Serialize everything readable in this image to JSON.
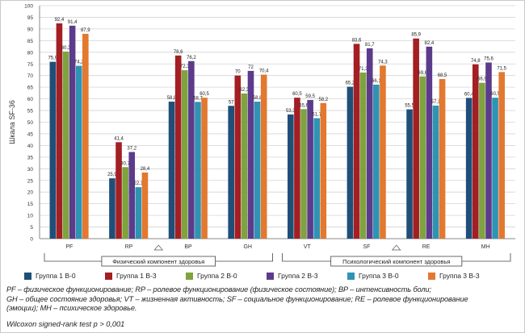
{
  "chart_data": {
    "type": "bar",
    "ylabel": "Шкала SF-36",
    "ylim": [
      0,
      100
    ],
    "ytick_step": 5,
    "grid": true,
    "categories": [
      "PF",
      "RP",
      "BP",
      "GH",
      "VT",
      "SF",
      "RE",
      "MH"
    ],
    "series": [
      {
        "name": "Группа 1 В-0",
        "color": "#1f4e79",
        "values": [
          75.9,
          25.9,
          58.8,
          57,
          53.3,
          65.2,
          55.5,
          60.4
        ],
        "labels": [
          "75,9",
          "25,9",
          "58,8",
          "57",
          "53,3",
          "65,2",
          "55,5",
          "60,4"
        ]
      },
      {
        "name": "Группа 1 В-3",
        "color": "#a31f24",
        "values": [
          92.4,
          41.4,
          78.6,
          70,
          60.5,
          83.6,
          85.9,
          74.8
        ],
        "labels": [
          "92,4",
          "41,4",
          "78,6",
          "70",
          "60,5",
          "83,6",
          "85,9",
          "74,8"
        ]
      },
      {
        "name": "Группа 2 В-0",
        "color": "#7ea33f",
        "values": [
          80.3,
          30.7,
          72.3,
          62.3,
          55.6,
          71.3,
          69.6,
          66.9
        ],
        "labels": [
          "80,3",
          "30,7",
          "72,3",
          "62,3",
          "55,6",
          "71,3",
          "69,6",
          "66,9"
        ]
      },
      {
        "name": "Группа 2 В-3",
        "color": "#5c3b8c",
        "values": [
          91.4,
          37.2,
          76.2,
          72,
          59.5,
          81.7,
          82.4,
          75.6
        ],
        "labels": [
          "91,4",
          "37,2",
          "76,2",
          "72",
          "59,5",
          "81,7",
          "82,4",
          "75,6"
        ]
      },
      {
        "name": "Группа 3 В-0",
        "color": "#2f93b3",
        "values": [
          74.2,
          22.1,
          58.7,
          58.8,
          51.7,
          66.1,
          57.1,
          60.5
        ],
        "labels": [
          "74,2",
          "22,1",
          "58,7",
          "58,8",
          "51,7",
          "66,1",
          "57,1",
          "60,5"
        ]
      },
      {
        "name": "Группа 3 В-3",
        "color": "#e3782f",
        "values": [
          87.9,
          28.4,
          60.5,
          70.4,
          58.2,
          74.3,
          68.5,
          71.5
        ],
        "labels": [
          "87,9",
          "28,4",
          "60,5",
          "70,4",
          "58,2",
          "74,3",
          "68,5",
          "71,5"
        ]
      }
    ],
    "groups": [
      {
        "label": "Физический компонент здоровья",
        "categories": [
          "PF",
          "RP",
          "BP",
          "GH"
        ]
      },
      {
        "label": "Психологический компонент здоровья",
        "categories": [
          "VT",
          "SF",
          "RE",
          "MH"
        ]
      }
    ]
  },
  "footnote": {
    "line1": "PF – физическое функционирование; RP – ролевое функционирование (физическое состояние); BP – интенсивность боли;",
    "line2": "GH – общее состояние здоровья; VT – жизненная активность; SF – социальное функционирование; RE – ролевое функционирование",
    "line3": "(эмоции); MH – психическое здоровье.",
    "test": "Wilcoxon signed-rank test p > 0,001"
  }
}
